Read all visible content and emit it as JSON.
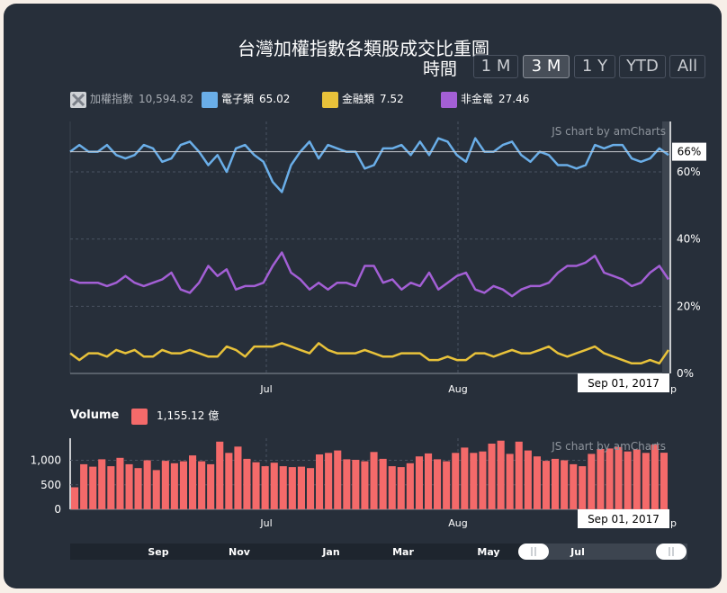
{
  "title": "台灣加權指數各類股成交比重圖",
  "period_selector": {
    "label": "時間",
    "buttons": [
      {
        "label": "1 M",
        "selected": false
      },
      {
        "label": "3 M",
        "selected": true
      },
      {
        "label": "1 Y",
        "selected": false
      },
      {
        "label": "YTD",
        "selected": false
      },
      {
        "label": "All",
        "selected": false
      }
    ]
  },
  "legend": [
    {
      "name": "加權指數",
      "value": "10,594.82",
      "color": "#9a9a9a",
      "hidden": true
    },
    {
      "name": "電子類",
      "value": "65.02",
      "color": "#6aaee8"
    },
    {
      "name": "金融類",
      "value": "7.52",
      "color": "#e8c23a"
    },
    {
      "name": "非金電",
      "value": "27.46",
      "color": "#a35fd5"
    }
  ],
  "credit": "JS chart by amCharts",
  "cursor": {
    "date": "Sep 01, 2017",
    "value_label": "66%"
  },
  "volume_legend": {
    "title": "Volume",
    "value": "1,155.12 億",
    "color": "#f46a6a"
  },
  "scrollbar_labels": [
    "Sep",
    "Nov",
    "Jan",
    "Mar",
    "May",
    "Jul"
  ],
  "chart_data": [
    {
      "type": "line",
      "title": "台灣加權指數各類股成交比重圖",
      "x_ticks": [
        "Jul",
        "Aug"
      ],
      "y_ticks": [
        "0%",
        "20%",
        "40%",
        "60%"
      ],
      "ylim": [
        0,
        75
      ],
      "series": [
        {
          "name": "電子類",
          "color": "#6aaee8",
          "values": [
            66,
            68,
            66,
            66,
            68,
            65,
            64,
            65,
            68,
            67,
            63,
            64,
            68,
            69,
            66,
            62,
            65,
            60,
            67,
            68,
            65,
            63,
            57,
            54,
            62,
            66,
            69,
            64,
            68,
            67,
            66,
            66,
            61,
            62,
            67,
            67,
            68,
            65,
            69,
            65,
            70,
            69,
            65,
            63,
            70,
            66,
            66,
            68,
            69,
            65,
            63,
            66,
            65,
            62,
            62,
            61,
            62,
            68,
            67,
            68,
            68,
            64,
            63,
            64,
            67,
            65
          ]
        },
        {
          "name": "金融類",
          "color": "#e8c23a",
          "values": [
            6,
            4,
            6,
            6,
            5,
            7,
            6,
            7,
            5,
            5,
            7,
            6,
            6,
            7,
            6,
            5,
            5,
            8,
            7,
            5,
            8,
            8,
            8,
            9,
            8,
            7,
            6,
            9,
            7,
            6,
            6,
            6,
            7,
            6,
            5,
            5,
            6,
            6,
            6,
            4,
            4,
            5,
            4,
            4,
            6,
            6,
            5,
            6,
            7,
            6,
            6,
            7,
            8,
            6,
            5,
            6,
            7,
            8,
            6,
            5,
            4,
            3,
            3,
            4,
            3,
            7
          ]
        },
        {
          "name": "非金電",
          "color": "#a35fd5",
          "values": [
            28,
            27,
            27,
            27,
            26,
            27,
            29,
            27,
            26,
            27,
            28,
            30,
            25,
            24,
            27,
            32,
            29,
            31,
            25,
            26,
            26,
            27,
            32,
            36,
            30,
            28,
            25,
            27,
            25,
            27,
            27,
            26,
            32,
            32,
            27,
            28,
            25,
            27,
            26,
            30,
            25,
            27,
            29,
            30,
            25,
            24,
            26,
            25,
            23,
            25,
            26,
            26,
            27,
            30,
            32,
            32,
            33,
            35,
            30,
            29,
            28,
            26,
            27,
            30,
            32,
            28
          ]
        }
      ],
      "cursor_value": 66
    },
    {
      "type": "bar",
      "title": "Volume",
      "x_ticks": [
        "Jul",
        "Aug"
      ],
      "y_ticks": [
        "0",
        "500",
        "1,000"
      ],
      "ylim": [
        0,
        1450
      ],
      "series": [
        {
          "name": "Volume",
          "color": "#f46a6a",
          "values": [
            450,
            920,
            870,
            1020,
            880,
            1050,
            920,
            840,
            1000,
            800,
            990,
            940,
            980,
            1100,
            980,
            920,
            1380,
            1150,
            1280,
            1030,
            960,
            880,
            950,
            880,
            860,
            870,
            840,
            1120,
            1150,
            1200,
            1020,
            1010,
            980,
            1170,
            1030,
            880,
            860,
            940,
            1080,
            1140,
            1020,
            980,
            1150,
            1260,
            1150,
            1180,
            1340,
            1400,
            1130,
            1380,
            1200,
            1080,
            990,
            1030,
            1000,
            920,
            880,
            1130,
            1230,
            1240,
            1270,
            1180,
            1220,
            1150,
            1320,
            1155
          ]
        }
      ]
    }
  ]
}
